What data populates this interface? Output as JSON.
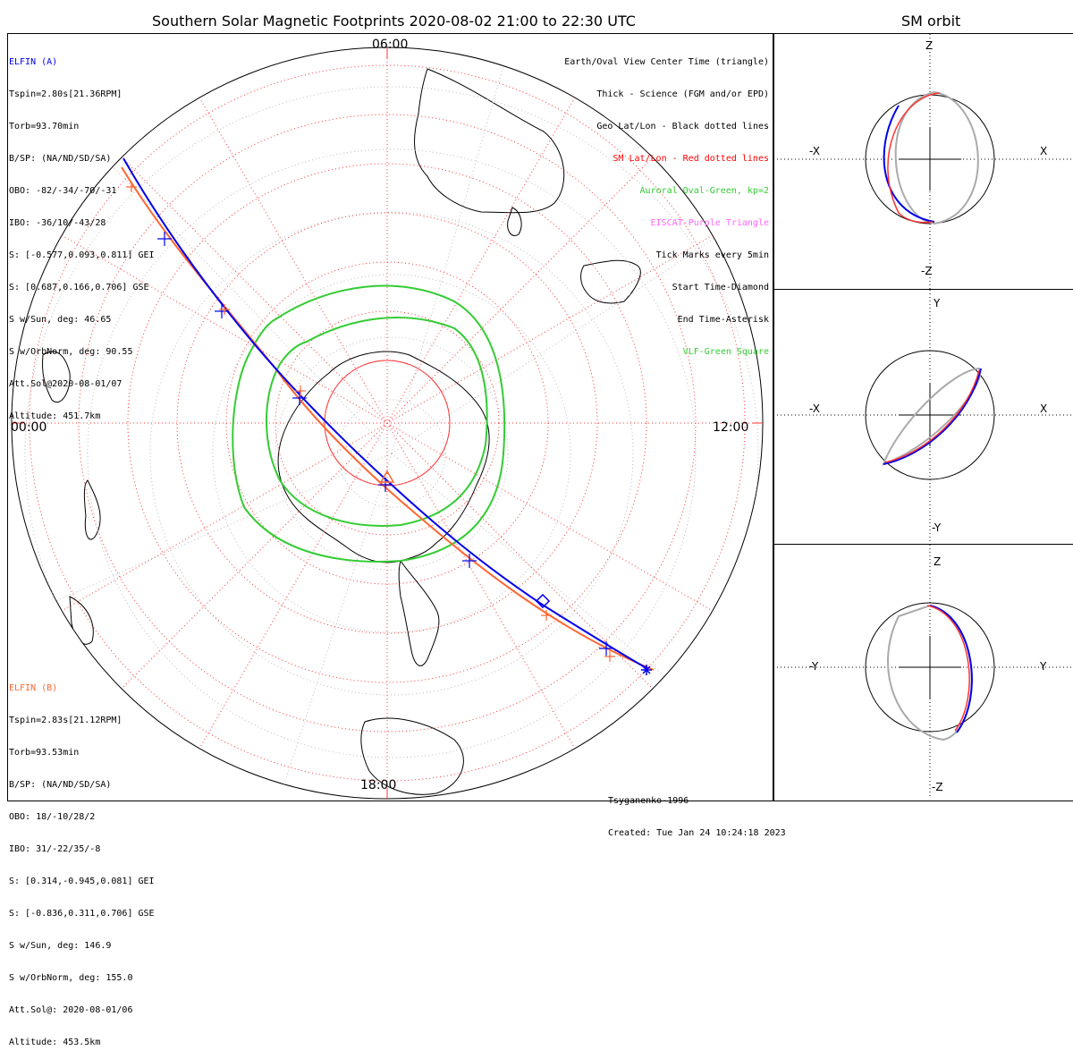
{
  "main_title": "Southern Solar Magnetic Footprints 2020-08-02 21:00 to 22:30 UTC",
  "orbit_title": "SM orbit",
  "elfin_a": {
    "name": "ELFIN (A)",
    "color": "#0000ee",
    "lines": [
      "Tspin=2.80s[21.36RPM]",
      "Torb=93.70min",
      "B/SP: (NA/ND/SD/SA)",
      "OBO: -82/-34/-70/-31",
      "IBO: -36/10/-43/28",
      "S: [-0.577,0.093,0.811] GEI",
      "S: [0.687,0.166,0.706] GSE",
      "S w/Sun, deg: 46.65",
      "S w/OrbNorm, deg: 90.55",
      "Att.Sol@2020-08-01/07",
      "Altitude: 451.7km"
    ]
  },
  "elfin_b": {
    "name": "ELFIN (B)",
    "color": "#ff6633",
    "lines": [
      "Tspin=2.83s[21.12RPM]",
      "Torb=93.53min",
      "B/SP: (NA/ND/SD/SA)",
      "OBO: 18/-10/28/2",
      "IBO: 31/-22/35/-8",
      "S: [0.314,-0.945,0.081] GEI",
      "S: [-0.836,0.311,0.706] GSE",
      "S w/Sun, deg: 146.9",
      "S w/OrbNorm, deg: 155.0",
      "Att.Sol@: 2020-08-01/06",
      "Altitude: 453.5km"
    ]
  },
  "legend": [
    {
      "text": "Earth/Oval View Center Time (triangle)",
      "color": "#000000"
    },
    {
      "text": "Thick - Science (FGM and/or EPD)",
      "color": "#000000"
    },
    {
      "text": "Geo Lat/Lon - Black dotted lines",
      "color": "#000000"
    },
    {
      "text": "SM Lat/Lon - Red dotted lines",
      "color": "#ff0000"
    },
    {
      "text": "Auroral Oval-Green, kp=2",
      "color": "#33cc33"
    },
    {
      "text": "EISCAT-Purple Triangle",
      "color": "#ff66ff"
    },
    {
      "text": "Tick Marks every 5min",
      "color": "#000000"
    },
    {
      "text": "Start Time-Diamond",
      "color": "#000000"
    },
    {
      "text": "End Time-Asterisk",
      "color": "#000000"
    },
    {
      "text": "VLF-Green Square",
      "color": "#33cc33"
    }
  ],
  "mlt_labels": {
    "top": "06:00",
    "left": "00:00",
    "right": "12:00",
    "bottom": "18:00"
  },
  "footer": {
    "model": "Tsyganenko-1996",
    "created": "Created: Tue Jan 24 10:24:18 2023"
  },
  "orbit_panels": [
    {
      "top": "Z",
      "bottom": "-Z",
      "left": "-X",
      "right": "X"
    },
    {
      "top": "Y",
      "bottom": "-Y",
      "left": "-X",
      "right": "X"
    },
    {
      "top": "Z",
      "bottom": "-Z",
      "left": "-Y",
      "right": "Y"
    }
  ]
}
